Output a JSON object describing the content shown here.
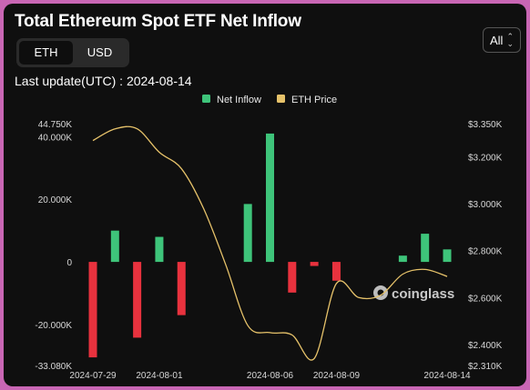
{
  "title": "Total Ethereum Spot ETF Net Inflow",
  "toggle": {
    "options": [
      "ETH",
      "USD"
    ],
    "selected": "ETH"
  },
  "range_select": {
    "value": "All"
  },
  "last_update": "Last update(UTC) : 2024-08-14",
  "watermark": "coinglass",
  "colors": {
    "positive": "#3ec47a",
    "negative": "#e8323e",
    "price": "#e6c26a",
    "background": "#0f0f0f"
  },
  "chart_data": {
    "type": "bar",
    "legend": [
      "Net Inflow",
      "ETH Price"
    ],
    "legend_placement": "top-center",
    "grid": false,
    "x_tick_labels": [
      "2024-07-29",
      "2024-08-01",
      "2024-08-06",
      "2024-08-09",
      "2024-08-14"
    ],
    "y_left_tick_labels": [
      "44.750K",
      "40.000K",
      "20.000K",
      "0",
      "-20.000K",
      "-33.080K"
    ],
    "y_right_tick_labels": [
      "$3.350K",
      "$3.200K",
      "$3.000K",
      "$2.800K",
      "$2.600K",
      "$2.400K",
      "$2.310K"
    ],
    "ylim_left": [
      -33080,
      44750
    ],
    "ylim_right": [
      2310,
      3350
    ],
    "series": [
      {
        "name": "Net Inflow",
        "type": "bar",
        "points": [
          {
            "x": "2024-07-29",
            "y": -30500
          },
          {
            "x": "2024-07-30",
            "y": 10000
          },
          {
            "x": "2024-07-31",
            "y": -24200
          },
          {
            "x": "2024-08-01",
            "y": 8000
          },
          {
            "x": "2024-08-02",
            "y": -17000
          },
          {
            "x": "2024-08-05",
            "y": 18500
          },
          {
            "x": "2024-08-06",
            "y": 41000
          },
          {
            "x": "2024-08-07",
            "y": -9800
          },
          {
            "x": "2024-08-08",
            "y": -1300
          },
          {
            "x": "2024-08-09",
            "y": -6000
          },
          {
            "x": "2024-08-12",
            "y": 2000
          },
          {
            "x": "2024-08-13",
            "y": 9000
          },
          {
            "x": "2024-08-14",
            "y": 4000
          }
        ]
      },
      {
        "name": "ETH Price",
        "type": "line",
        "points": [
          {
            "x": "2024-07-29",
            "y": 3270
          },
          {
            "x": "2024-07-30",
            "y": 3320
          },
          {
            "x": "2024-07-31",
            "y": 3320
          },
          {
            "x": "2024-08-01",
            "y": 3220
          },
          {
            "x": "2024-08-02",
            "y": 3150
          },
          {
            "x": "2024-08-03",
            "y": 2980
          },
          {
            "x": "2024-08-04",
            "y": 2740
          },
          {
            "x": "2024-08-05",
            "y": 2480
          },
          {
            "x": "2024-08-06",
            "y": 2450
          },
          {
            "x": "2024-08-07",
            "y": 2440
          },
          {
            "x": "2024-08-08",
            "y": 2340
          },
          {
            "x": "2024-08-09",
            "y": 2660
          },
          {
            "x": "2024-08-10",
            "y": 2600
          },
          {
            "x": "2024-08-11",
            "y": 2610
          },
          {
            "x": "2024-08-12",
            "y": 2700
          },
          {
            "x": "2024-08-13",
            "y": 2720
          },
          {
            "x": "2024-08-14",
            "y": 2690
          }
        ]
      }
    ]
  }
}
